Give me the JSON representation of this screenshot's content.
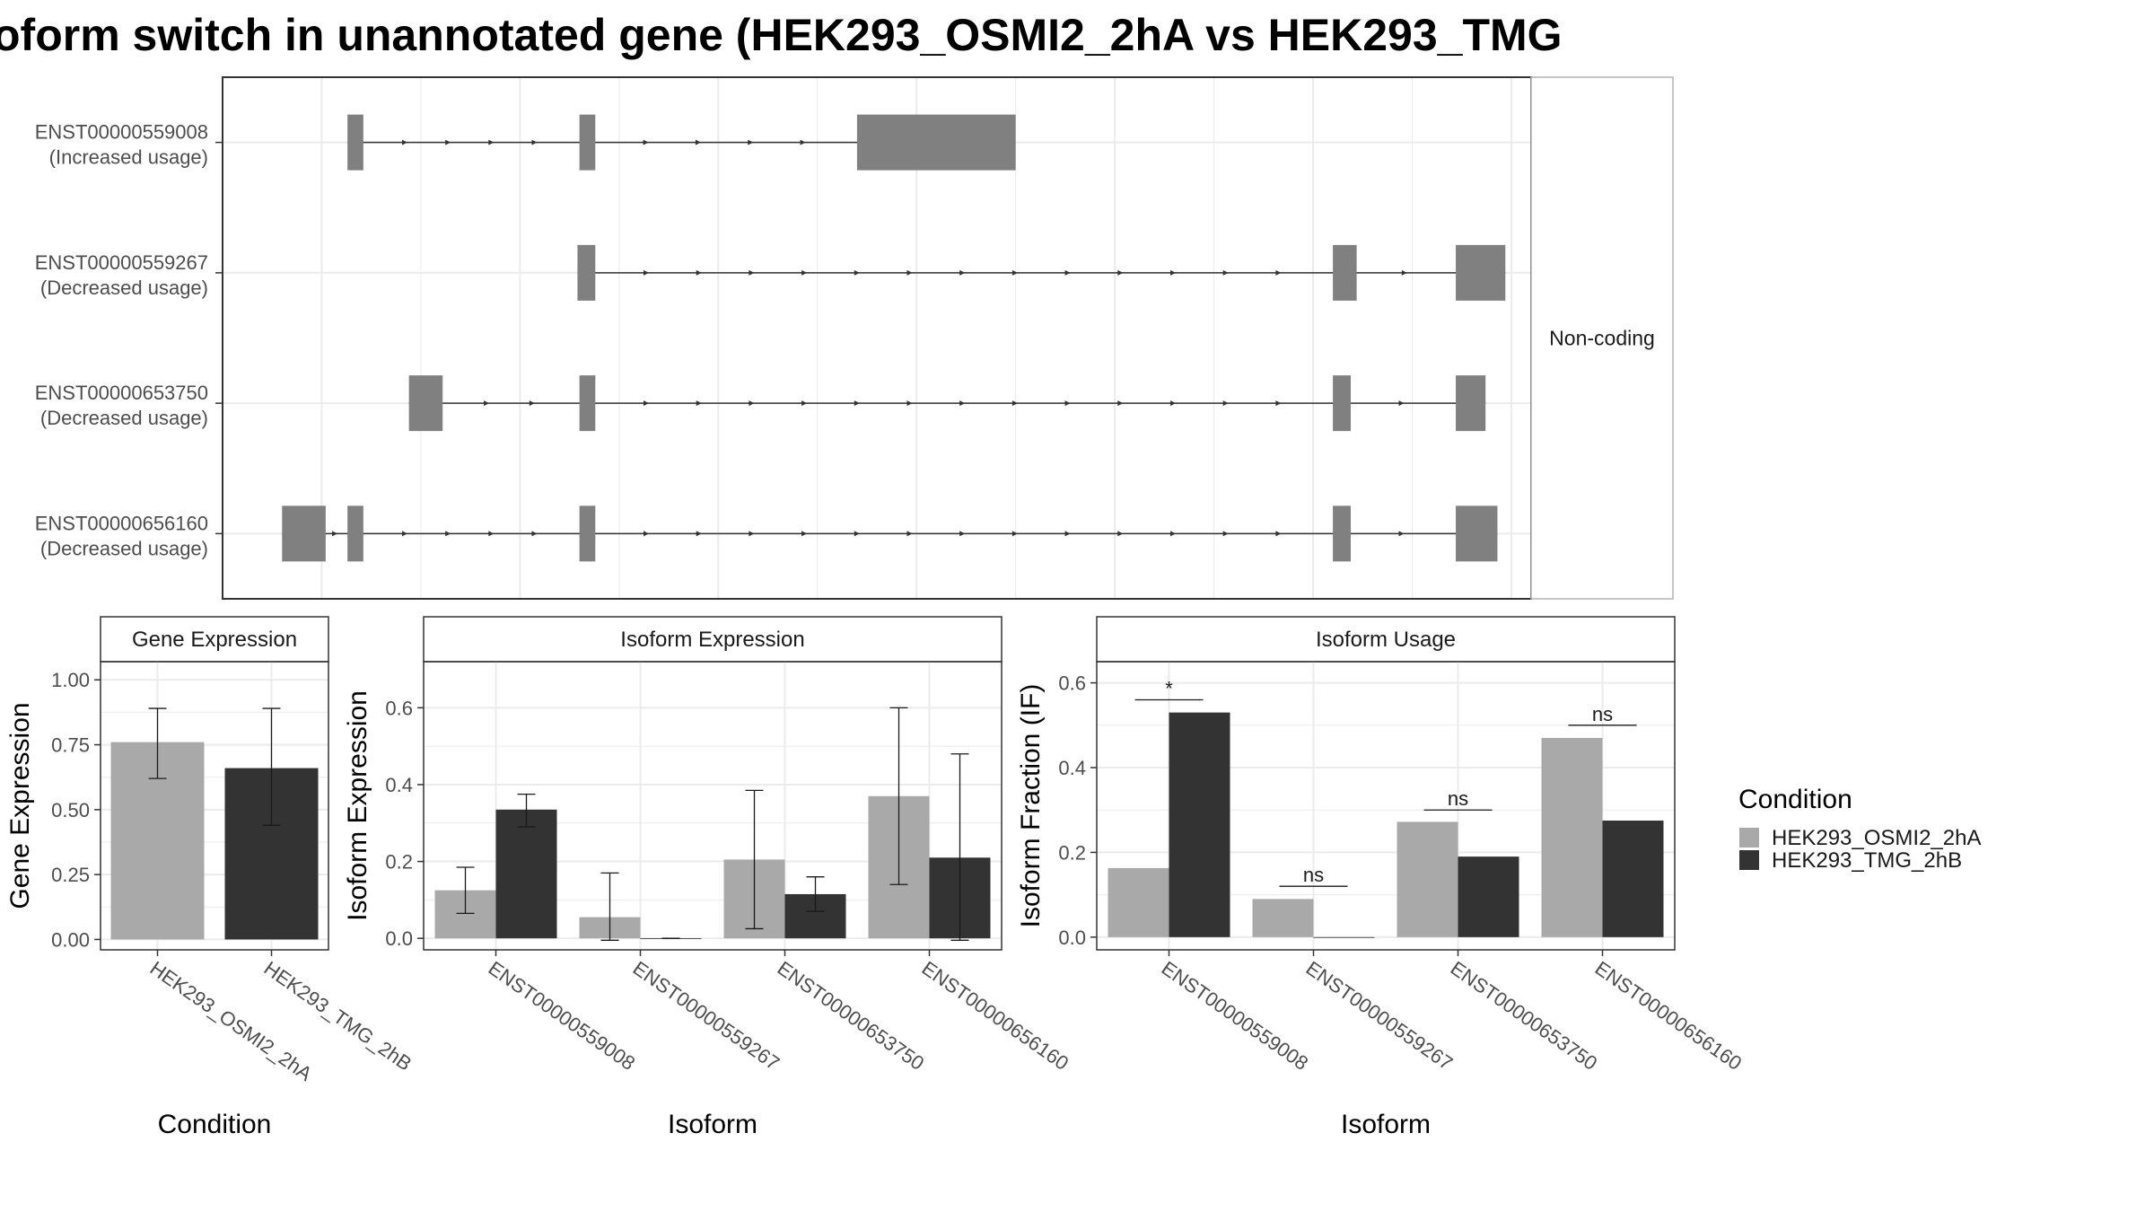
{
  "title": "oform switch in unannotated gene (HEK293_OSMI2_2hA vs HEK293_TMG",
  "colors": {
    "exon": "#808080",
    "condA": "#a9a9a9",
    "condB": "#333333",
    "grid": "#ebebeb",
    "border": "#333333",
    "strip_border": "#b3b3b3",
    "strip_bg": "#ffffff"
  },
  "structure_plot": {
    "strip_label": "Non-coding",
    "transcripts": [
      {
        "id": "ENST00000559008",
        "usage": "(Increased usage)",
        "exons": [
          [
            5.13,
            5.21
          ],
          [
            6.3,
            6.38
          ],
          [
            7.7,
            8.5
          ]
        ]
      },
      {
        "id": "ENST00000559267",
        "usage": "(Decreased usage)",
        "exons": [
          [
            6.29,
            6.38
          ],
          [
            10.1,
            10.22
          ],
          [
            10.72,
            10.97
          ]
        ]
      },
      {
        "id": "ENST00000653750",
        "usage": "(Decreased usage)",
        "exons": [
          [
            5.44,
            5.61
          ],
          [
            6.3,
            6.38
          ],
          [
            10.1,
            10.19
          ],
          [
            10.72,
            10.87
          ]
        ]
      },
      {
        "id": "ENST00000656160",
        "usage": "(Decreased usage)",
        "exons": [
          [
            4.8,
            5.02
          ],
          [
            5.13,
            5.21
          ],
          [
            6.3,
            6.38
          ],
          [
            10.1,
            10.19
          ],
          [
            10.72,
            10.93
          ]
        ]
      }
    ]
  },
  "legend": {
    "title": "Condition",
    "items": [
      "HEK293_OSMI2_2hA",
      "HEK293_TMG_2hB"
    ]
  },
  "chart_data": [
    {
      "type": "bar",
      "title": "Gene Expression",
      "xlabel": "Condition",
      "ylabel": "Gene Expression",
      "categories": [
        "HEK293_OSMI2_2hA",
        "HEK293_TMG_2hB"
      ],
      "values": [
        0.76,
        0.66
      ],
      "errors": [
        [
          0.62,
          0.89
        ],
        [
          0.44,
          0.89
        ]
      ],
      "ylim": [
        -0.04,
        1.07
      ],
      "yticks": [
        0,
        0.25,
        0.5,
        0.75,
        1
      ],
      "ytick_labels": [
        "0.00",
        "0.25",
        "0.50",
        "0.75",
        "1.00"
      ]
    },
    {
      "type": "bar",
      "title": "Isoform Expression",
      "xlabel": "Isoform",
      "ylabel": "Isoform Expression",
      "categories": [
        "ENST00000559008",
        "ENST00000559267",
        "ENST00000653750",
        "ENST00000656160"
      ],
      "series": [
        {
          "name": "HEK293_OSMI2_2hA",
          "values": [
            0.125,
            0.055,
            0.205,
            0.37
          ],
          "errors": [
            [
              0.065,
              0.185
            ],
            [
              -0.005,
              0.17
            ],
            [
              0.025,
              0.385
            ],
            [
              0.14,
              0.6
            ]
          ]
        },
        {
          "name": "HEK293_TMG_2hB",
          "values": [
            0.335,
            0.0,
            0.115,
            0.21
          ],
          "errors": [
            [
              0.29,
              0.375
            ],
            [
              0.0,
              0.0
            ],
            [
              0.07,
              0.16
            ],
            [
              -0.005,
              0.48
            ]
          ]
        }
      ],
      "ylim": [
        -0.03,
        0.72
      ],
      "yticks": [
        0,
        0.2,
        0.4,
        0.6
      ],
      "ytick_labels": [
        "0.0",
        "0.2",
        "0.4",
        "0.6"
      ]
    },
    {
      "type": "bar",
      "title": "Isoform Usage",
      "xlabel": "Isoform",
      "ylabel": "Isoform Fraction (IF)",
      "categories": [
        "ENST00000559008",
        "ENST00000559267",
        "ENST00000653750",
        "ENST00000656160"
      ],
      "series": [
        {
          "name": "HEK293_OSMI2_2hA",
          "values": [
            0.163,
            0.09,
            0.272,
            0.47
          ]
        },
        {
          "name": "HEK293_TMG_2hB",
          "values": [
            0.53,
            0.0,
            0.19,
            0.275
          ]
        }
      ],
      "significance": [
        {
          "label": "*",
          "level": 0.56
        },
        {
          "label": "ns",
          "level": 0.12
        },
        {
          "label": "ns",
          "level": 0.3
        },
        {
          "label": "ns",
          "level": 0.5
        }
      ],
      "ylim": [
        -0.03,
        0.65
      ],
      "yticks": [
        0,
        0.2,
        0.4,
        0.6
      ],
      "ytick_labels": [
        "0.0",
        "0.2",
        "0.4",
        "0.6"
      ]
    }
  ]
}
